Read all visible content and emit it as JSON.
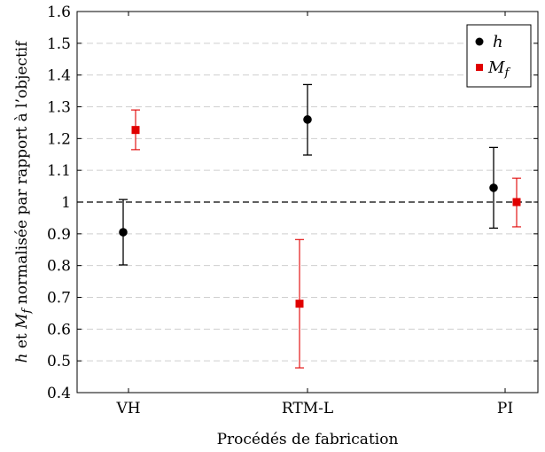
{
  "chart_data": {
    "type": "scatter",
    "categories": [
      "VH",
      "RTM-L",
      "PI"
    ],
    "xlabel": "Procédés de fabrication",
    "ylabel": {
      "h_symbol": "h",
      "mid": " et ",
      "m_symbol": "M",
      "m_sub": "f",
      "rest": " normalisée par rapport à l’objectif"
    },
    "ylim": [
      0.4,
      1.6
    ],
    "yticks": [
      0.4,
      0.5,
      0.6,
      0.7,
      0.8,
      0.9,
      1,
      1.1,
      1.2,
      1.3,
      1.4,
      1.5,
      1.6
    ],
    "grid": true,
    "reference_line": 1.0,
    "legend_position": "top-right",
    "series": [
      {
        "name": "h",
        "color": "#000000",
        "marker": "circle",
        "values": [
          0.905,
          1.26,
          1.045
        ],
        "err_low": [
          0.802,
          1.148,
          0.918
        ],
        "err_high": [
          1.008,
          1.37,
          1.172
        ]
      },
      {
        "name": "M",
        "name_sub": "f",
        "color": "#e00000",
        "marker": "square",
        "values": [
          1.227,
          0.68,
          1.0
        ],
        "err_low": [
          1.165,
          0.478,
          0.922
        ],
        "err_high": [
          1.29,
          0.882,
          1.075
        ]
      }
    ]
  }
}
